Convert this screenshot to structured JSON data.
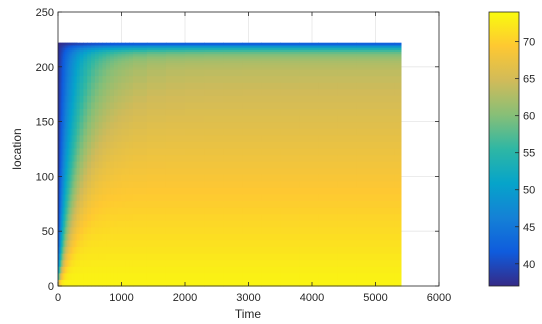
{
  "chart_data": {
    "type": "heatmap",
    "title": "",
    "xlabel": "Time",
    "ylabel": "location",
    "xlim": [
      0,
      6000
    ],
    "ylim": [
      0,
      250
    ],
    "xticks": [
      0,
      1000,
      2000,
      3000,
      4000,
      5000,
      6000
    ],
    "yticks": [
      0,
      50,
      100,
      150,
      200,
      250
    ],
    "grid": true,
    "data_extent": {
      "x": [
        0,
        5400
      ],
      "y": [
        0,
        222
      ]
    },
    "colormap": "parula",
    "colorbar": {
      "placement": "right",
      "range": [
        37,
        74
      ],
      "ticks": [
        40,
        45,
        50,
        55,
        60,
        65,
        70
      ]
    },
    "colors": {
      "colormap_stops": [
        "#352a87",
        "#0f5cdd",
        "#1481d6",
        "#06a4ca",
        "#2eb7a4",
        "#87bf77",
        "#d1bb59",
        "#fec832",
        "#f9fb0e"
      ],
      "grid": "#e6e6e6",
      "axes": "#262626"
    }
  }
}
